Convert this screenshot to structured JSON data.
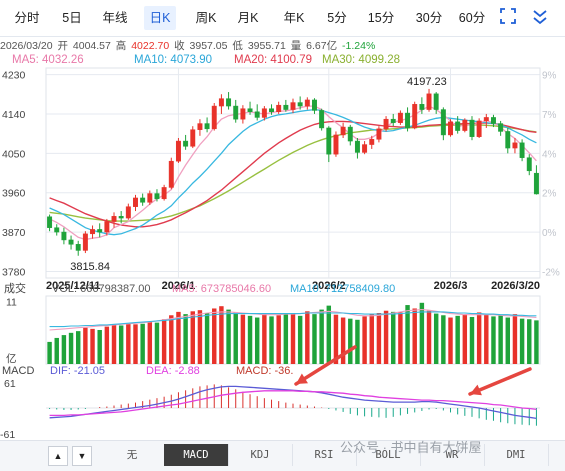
{
  "toolbar": {
    "tabs": [
      "分时",
      "5日",
      "年线",
      "日K",
      "周K",
      "月K",
      "年K",
      "5分",
      "15分",
      "30分",
      "60分"
    ],
    "active_tab": "日K",
    "fullscreen_icon": "fullscreen-icon",
    "more_icon": "chevron-down-icon"
  },
  "quote_bar": {
    "date": "2026/03/20",
    "open_label": "开",
    "open": "4004.57",
    "high_label": "高",
    "high": "4022.70",
    "close_label": "收",
    "close": "3957.05",
    "low_label": "低",
    "low": "3955.71",
    "volume_label": "量",
    "volume": "6.67亿",
    "change": "-1.24%"
  },
  "ma_bar": {
    "ma5": "MA5: 4032.26",
    "ma10": "MA10: 4073.90",
    "ma20": "MA20: 4100.79",
    "ma30": "MA30: 4099.28"
  },
  "colors": {
    "up": "#e8322a",
    "down": "#1fa33a",
    "ma5": "#f0a0c0",
    "ma10": "#38b8e0",
    "ma20": "#e03b4e",
    "ma30": "#98c040",
    "dif": "#5b5bd6",
    "dea": "#e040e0",
    "grid": "#e6eaf0",
    "annotation": "#e5463f"
  },
  "chart_data": [
    {
      "type": "candlestick",
      "title": "",
      "y_ticks": [
        "4230",
        "4140",
        "4050",
        "3960",
        "3870",
        "3780"
      ],
      "y_pct_ticks": [
        "9%",
        "7%",
        "4%",
        "2%",
        "0%",
        "-2%"
      ],
      "ylim": [
        3765,
        4245
      ],
      "x_labels": [
        "2025/12/11",
        "2026/1",
        "2026/2",
        "2026/3",
        "2026/3/20"
      ],
      "max_label": "4197.23",
      "min_label": "3815.84",
      "candles": [
        {
          "o": 3905,
          "h": 3910,
          "l": 3872,
          "c": 3880
        },
        {
          "o": 3880,
          "h": 3888,
          "l": 3862,
          "c": 3870
        },
        {
          "o": 3870,
          "h": 3880,
          "l": 3842,
          "c": 3852
        },
        {
          "o": 3852,
          "h": 3862,
          "l": 3830,
          "c": 3842
        },
        {
          "o": 3842,
          "h": 3850,
          "l": 3815.84,
          "c": 3828
        },
        {
          "o": 3828,
          "h": 3872,
          "l": 3822,
          "c": 3866
        },
        {
          "o": 3866,
          "h": 3885,
          "l": 3855,
          "c": 3876
        },
        {
          "o": 3876,
          "h": 3890,
          "l": 3858,
          "c": 3870
        },
        {
          "o": 3870,
          "h": 3900,
          "l": 3862,
          "c": 3894
        },
        {
          "o": 3894,
          "h": 3915,
          "l": 3880,
          "c": 3906
        },
        {
          "o": 3906,
          "h": 3918,
          "l": 3890,
          "c": 3902
        },
        {
          "o": 3902,
          "h": 3935,
          "l": 3898,
          "c": 3928
        },
        {
          "o": 3928,
          "h": 3955,
          "l": 3918,
          "c": 3948
        },
        {
          "o": 3948,
          "h": 3958,
          "l": 3930,
          "c": 3938
        },
        {
          "o": 3938,
          "h": 3965,
          "l": 3932,
          "c": 3958
        },
        {
          "o": 3958,
          "h": 3968,
          "l": 3940,
          "c": 3946
        },
        {
          "o": 3946,
          "h": 3978,
          "l": 3942,
          "c": 3972
        },
        {
          "o": 3972,
          "h": 4040,
          "l": 3968,
          "c": 4032
        },
        {
          "o": 4032,
          "h": 4085,
          "l": 4028,
          "c": 4078
        },
        {
          "o": 4078,
          "h": 4092,
          "l": 4058,
          "c": 4066
        },
        {
          "o": 4066,
          "h": 4112,
          "l": 4062,
          "c": 4104
        },
        {
          "o": 4104,
          "h": 4128,
          "l": 4090,
          "c": 4118
        },
        {
          "o": 4118,
          "h": 4132,
          "l": 4098,
          "c": 4106
        },
        {
          "o": 4106,
          "h": 4165,
          "l": 4102,
          "c": 4158
        },
        {
          "o": 4158,
          "h": 4185,
          "l": 4140,
          "c": 4175
        },
        {
          "o": 4175,
          "h": 4190,
          "l": 4150,
          "c": 4158
        },
        {
          "o": 4158,
          "h": 4172,
          "l": 4120,
          "c": 4128
        },
        {
          "o": 4128,
          "h": 4160,
          "l": 4118,
          "c": 4152
        },
        {
          "o": 4152,
          "h": 4168,
          "l": 4138,
          "c": 4145
        },
        {
          "o": 4145,
          "h": 4162,
          "l": 4125,
          "c": 4132
        },
        {
          "o": 4132,
          "h": 4158,
          "l": 4125,
          "c": 4152
        },
        {
          "o": 4152,
          "h": 4162,
          "l": 4138,
          "c": 4145
        },
        {
          "o": 4145,
          "h": 4168,
          "l": 4140,
          "c": 4160
        },
        {
          "o": 4160,
          "h": 4172,
          "l": 4145,
          "c": 4150
        },
        {
          "o": 4150,
          "h": 4175,
          "l": 4142,
          "c": 4166
        },
        {
          "o": 4166,
          "h": 4180,
          "l": 4150,
          "c": 4158
        },
        {
          "o": 4158,
          "h": 4178,
          "l": 4150,
          "c": 4172
        },
        {
          "o": 4172,
          "h": 4176,
          "l": 4140,
          "c": 4148
        },
        {
          "o": 4148,
          "h": 4152,
          "l": 4102,
          "c": 4108
        },
        {
          "o": 4108,
          "h": 4112,
          "l": 4030,
          "c": 4048
        },
        {
          "o": 4048,
          "h": 4100,
          "l": 4042,
          "c": 4092
        },
        {
          "o": 4092,
          "h": 4120,
          "l": 4085,
          "c": 4110
        },
        {
          "o": 4110,
          "h": 4115,
          "l": 4068,
          "c": 4078
        },
        {
          "o": 4078,
          "h": 4085,
          "l": 4038,
          "c": 4052
        },
        {
          "o": 4052,
          "h": 4078,
          "l": 4048,
          "c": 4070
        },
        {
          "o": 4070,
          "h": 4090,
          "l": 4060,
          "c": 4082
        },
        {
          "o": 4082,
          "h": 4112,
          "l": 4075,
          "c": 4106
        },
        {
          "o": 4106,
          "h": 4135,
          "l": 4100,
          "c": 4128
        },
        {
          "o": 4128,
          "h": 4140,
          "l": 4112,
          "c": 4120
        },
        {
          "o": 4120,
          "h": 4148,
          "l": 4115,
          "c": 4142
        },
        {
          "o": 4142,
          "h": 4155,
          "l": 4100,
          "c": 4108
        },
        {
          "o": 4108,
          "h": 4168,
          "l": 4105,
          "c": 4162
        },
        {
          "o": 4162,
          "h": 4178,
          "l": 4140,
          "c": 4150
        },
        {
          "o": 4150,
          "h": 4197.23,
          "l": 4145,
          "c": 4186
        },
        {
          "o": 4186,
          "h": 4190,
          "l": 4140,
          "c": 4150
        },
        {
          "o": 4150,
          "h": 4155,
          "l": 4080,
          "c": 4092
        },
        {
          "o": 4092,
          "h": 4128,
          "l": 4088,
          "c": 4122
        },
        {
          "o": 4122,
          "h": 4135,
          "l": 4095,
          "c": 4102
        },
        {
          "o": 4102,
          "h": 4130,
          "l": 4098,
          "c": 4126
        },
        {
          "o": 4126,
          "h": 4135,
          "l": 4080,
          "c": 4088
        },
        {
          "o": 4088,
          "h": 4130,
          "l": 4085,
          "c": 4124
        },
        {
          "o": 4124,
          "h": 4140,
          "l": 4108,
          "c": 4132
        },
        {
          "o": 4132,
          "h": 4138,
          "l": 4110,
          "c": 4118
        },
        {
          "o": 4118,
          "h": 4124,
          "l": 4090,
          "c": 4100
        },
        {
          "o": 4100,
          "h": 4108,
          "l": 4050,
          "c": 4062
        },
        {
          "o": 4062,
          "h": 4085,
          "l": 4050,
          "c": 4074
        },
        {
          "o": 4074,
          "h": 4082,
          "l": 4032,
          "c": 4040
        },
        {
          "o": 4040,
          "h": 4048,
          "l": 4000,
          "c": 4010
        },
        {
          "o": 4004.57,
          "h": 4022.7,
          "l": 3955.71,
          "c": 3957.05
        }
      ],
      "ma5": [
        3900,
        3892,
        3882,
        3870,
        3858,
        3853,
        3856,
        3858,
        3864,
        3880,
        3887,
        3894,
        3907,
        3920,
        3934,
        3946,
        3955,
        3967,
        3996,
        4023,
        4047,
        4070,
        4088,
        4110,
        4128,
        4136,
        4139,
        4141,
        4145,
        4142,
        4140,
        4143,
        4146,
        4147,
        4150,
        4154,
        4158,
        4158,
        4150,
        4134,
        4120,
        4108,
        4094,
        4082,
        4082,
        4086,
        4096,
        4110,
        4122,
        4124,
        4130,
        4138,
        4149,
        4158,
        4150,
        4138,
        4124,
        4110,
        4116,
        4114,
        4120,
        4125,
        4120,
        4110,
        4095,
        4084,
        4068,
        4051,
        4033
      ],
      "ma10": [
        3925,
        3918,
        3910,
        3900,
        3890,
        3880,
        3874,
        3870,
        3866,
        3864,
        3866,
        3872,
        3878,
        3886,
        3897,
        3909,
        3918,
        3930,
        3948,
        3964,
        3982,
        3997,
        4014,
        4032,
        4050,
        4070,
        4085,
        4100,
        4112,
        4120,
        4128,
        4134,
        4138,
        4140,
        4143,
        4146,
        4148,
        4150,
        4148,
        4143,
        4138,
        4132,
        4125,
        4117,
        4110,
        4105,
        4102,
        4100,
        4102,
        4106,
        4110,
        4114,
        4120,
        4126,
        4130,
        4132,
        4130,
        4128,
        4126,
        4124,
        4122,
        4120,
        4118,
        4115,
        4108,
        4100,
        4092,
        4082,
        4074
      ],
      "ma20": [
        3948,
        3942,
        3936,
        3928,
        3920,
        3912,
        3906,
        3900,
        3895,
        3890,
        3886,
        3884,
        3882,
        3882,
        3884,
        3887,
        3892,
        3898,
        3906,
        3914,
        3923,
        3932,
        3942,
        3954,
        3966,
        3980,
        3994,
        4008,
        4022,
        4036,
        4050,
        4062,
        4074,
        4084,
        4094,
        4103,
        4110,
        4116,
        4120,
        4122,
        4123,
        4123,
        4122,
        4120,
        4118,
        4116,
        4114,
        4112,
        4111,
        4110,
        4110,
        4111,
        4112,
        4114,
        4115,
        4116,
        4117,
        4117,
        4118,
        4118,
        4119,
        4119,
        4118,
        4116,
        4112,
        4108,
        4104,
        4100,
        4098
      ],
      "ma30": [
        3915,
        3913,
        3911,
        3908,
        3905,
        3902,
        3900,
        3898,
        3896,
        3895,
        3895,
        3895,
        3896,
        3897,
        3898,
        3900,
        3903,
        3907,
        3912,
        3918,
        3924,
        3930,
        3938,
        3946,
        3955,
        3964,
        3974,
        3984,
        3994,
        4004,
        4014,
        4024,
        4034,
        4043,
        4052,
        4060,
        4068,
        4075,
        4081,
        4086,
        4090,
        4094,
        4097,
        4099,
        4101,
        4103,
        4104,
        4105,
        4106,
        4107,
        4108,
        4109,
        4110,
        4112,
        4113,
        4114,
        4114,
        4115,
        4115,
        4115,
        4115,
        4114,
        4113,
        4111,
        4109,
        4107,
        4104,
        4101,
        4099
      ]
    },
    {
      "type": "bar",
      "title": "成交",
      "vol_label": "VOL: 666798387.00",
      "ma5_label": "MA5: 673785046.60",
      "ma10_label": "MA10: 712758409.80",
      "y_tick": "11",
      "unit_label": "亿",
      "ylim": [
        0,
        12
      ],
      "volumes_yi": [
        3.9,
        4.6,
        5.1,
        5.5,
        5.8,
        6.4,
        6.2,
        6.0,
        6.6,
        6.9,
        6.8,
        7.2,
        7.0,
        7.1,
        7.5,
        7.3,
        7.9,
        8.6,
        9.2,
        8.8,
        9.3,
        9.5,
        9.0,
        9.8,
        10.2,
        9.6,
        9.1,
        8.7,
        8.5,
        8.2,
        8.9,
        8.4,
        8.6,
        8.8,
        9.0,
        8.5,
        9.3,
        8.8,
        9.6,
        10.3,
        8.7,
        8.2,
        8.0,
        7.8,
        8.4,
        8.8,
        9.0,
        9.4,
        9.2,
        9.1,
        10.4,
        9.8,
        10.8,
        9.4,
        8.9,
        8.6,
        8.2,
        8.5,
        8.8,
        8.3,
        9.1,
        8.9,
        8.4,
        8.6,
        8.2,
        8.8,
        8.0,
        7.9,
        7.7
      ],
      "vol_ma5": [
        6.0,
        6.1,
        6.2,
        6.3,
        6.4,
        6.5,
        6.6,
        6.7,
        6.8,
        6.9,
        7.0,
        7.1,
        7.2,
        7.3,
        7.4,
        7.6,
        7.8,
        8.0,
        8.2,
        8.4,
        8.6,
        8.8,
        9.0,
        9.1,
        9.2,
        9.2,
        9.1,
        9.0,
        8.9,
        8.8,
        8.7,
        8.7,
        8.7,
        8.8,
        8.8,
        8.9,
        9.0,
        9.1,
        9.2,
        9.3,
        9.2,
        9.0,
        8.8,
        8.6,
        8.5,
        8.5,
        8.6,
        8.8,
        9.0,
        9.2,
        9.4,
        9.5,
        9.6,
        9.5,
        9.3,
        9.1,
        8.9,
        8.8,
        8.7,
        8.7,
        8.7,
        8.7,
        8.7,
        8.6,
        8.5,
        8.5,
        8.4,
        8.3,
        8.2
      ],
      "vol_ma10": [
        6.6,
        6.6,
        6.6,
        6.7,
        6.7,
        6.8,
        6.8,
        6.9,
        6.9,
        7.0,
        7.1,
        7.2,
        7.3,
        7.4,
        7.5,
        7.6,
        7.7,
        7.8,
        8.0,
        8.1,
        8.3,
        8.4,
        8.6,
        8.7,
        8.8,
        8.9,
        8.9,
        8.9,
        8.9,
        8.9,
        8.9,
        8.9,
        8.9,
        8.9,
        8.9,
        8.9,
        9.0,
        9.0,
        9.0,
        9.0,
        9.0,
        9.0,
        8.9,
        8.9,
        8.8,
        8.8,
        8.8,
        8.8,
        8.8,
        8.9,
        9.0,
        9.1,
        9.2,
        9.2,
        9.2,
        9.2,
        9.1,
        9.0,
        9.0,
        8.9,
        8.9,
        8.8,
        8.8,
        8.7,
        8.7,
        8.6,
        8.6,
        8.5,
        8.5
      ]
    },
    {
      "type": "bar",
      "title": "MACD",
      "dif_label": "DIF: -21.05",
      "dea_label": "DEA: -2.88",
      "macd_label": "MACD: -36.",
      "y_ticks": [
        "61",
        "-61"
      ],
      "ylim": [
        -61,
        61
      ],
      "hist": [
        -2,
        -3,
        -4,
        -4,
        -3,
        -2,
        0,
        2,
        3,
        5,
        7,
        9,
        11,
        14,
        17,
        20,
        23,
        27,
        32,
        36,
        40,
        44,
        46,
        48,
        46,
        42,
        38,
        33,
        28,
        24,
        20,
        17,
        14,
        11,
        9,
        7,
        5,
        3,
        1,
        -2,
        -5,
        -8,
        -12,
        -15,
        -17,
        -18,
        -19,
        -20,
        -18,
        -15,
        -12,
        -9,
        -6,
        -3,
        -2,
        -5,
        -9,
        -13,
        -16,
        -18,
        -21,
        -24,
        -26,
        -29,
        -31,
        -33,
        -34,
        -35,
        -36
      ],
      "dif": [
        -20,
        -19,
        -18,
        -17,
        -15,
        -13,
        -11,
        -9,
        -7,
        -5,
        -3,
        -1,
        1,
        3,
        5,
        8,
        11,
        14,
        18,
        23,
        28,
        33,
        37,
        40,
        43,
        44,
        44,
        43,
        42,
        41,
        40,
        39,
        38,
        37,
        36,
        35,
        34,
        33,
        31,
        28,
        25,
        22,
        20,
        18,
        16,
        15,
        14,
        13,
        12,
        12,
        12,
        12,
        13,
        13,
        12,
        10,
        8,
        6,
        4,
        2,
        0,
        -3,
        -6,
        -9,
        -12,
        -15,
        -17,
        -19,
        -21.05
      ],
      "dea": [
        -15,
        -15,
        -15,
        -14,
        -14,
        -13,
        -12,
        -11,
        -10,
        -9,
        -8,
        -6,
        -4,
        -2,
        0,
        2,
        4,
        6,
        8,
        11,
        14,
        17,
        20,
        23,
        26,
        28,
        30,
        32,
        33,
        34,
        35,
        35,
        35,
        35,
        35,
        34,
        34,
        33,
        33,
        32,
        31,
        30,
        28,
        27,
        25,
        24,
        22,
        21,
        20,
        19,
        18,
        17,
        16,
        16,
        15,
        15,
        14,
        13,
        12,
        11,
        10,
        9,
        7,
        6,
        4,
        2,
        0,
        -1,
        -2.88
      ]
    }
  ],
  "indicator_tabs": [
    "无",
    "MACD",
    "KDJ",
    "RSI",
    "BOLL",
    "WR",
    "DMI"
  ],
  "active_indicator": "MACD",
  "nav": {
    "up": "▲",
    "down": "▼"
  },
  "watermark": "公众号 · 书中自有大饼屋"
}
